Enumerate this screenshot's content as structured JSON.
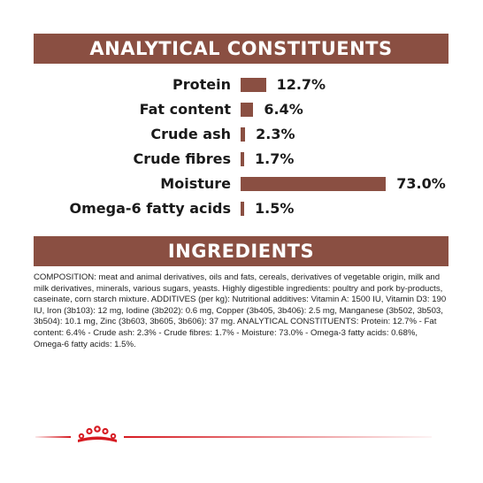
{
  "analytical_title": "ANALYTICAL CONSTITUENTS",
  "ingredients_title": "INGREDIENTS",
  "constituents": [
    {
      "label": "Protein",
      "value_text": "12.7%",
      "value": 12.7
    },
    {
      "label": "Fat content",
      "value_text": "6.4%",
      "value": 6.4
    },
    {
      "label": "Crude ash",
      "value_text": "2.3%",
      "value": 2.3
    },
    {
      "label": "Crude fibres",
      "value_text": "1.7%",
      "value": 1.7
    },
    {
      "label": "Moisture",
      "value_text": "73.0%",
      "value": 73.0
    },
    {
      "label": "Omega-6 fatty acids",
      "value_text": "1.5%",
      "value": 1.5
    }
  ],
  "ingredients_text": "COMPOSITION: meat and animal derivatives, oils and fats, cereals, derivatives of vegetable origin, milk and milk derivatives, minerals, various sugars, yeasts. Highly digestible ingredients: poultry and pork by-products, caseinate, corn starch mixture. ADDITIVES (per kg): Nutritional additives: Vitamin A: 1500 IU, Vitamin D3: 190 IU, Iron (3b103): 12 mg, Iodine (3b202): 0.6 mg, Copper (3b405, 3b406): 2.5 mg, Manganese (3b502, 3b503, 3b504): 10.1 mg, Zinc (3b603, 3b605, 3b606): 37 mg. ANALYTICAL CONSTITUENTS: Protein: 12.7% - Fat content: 6.4% - Crude ash: 2.3% - Crude fibres: 1.7% - Moisture: 73.0% - Omega-3 fatty acids: 0.68%, Omega-6 fatty acids: 1.5%.",
  "colors": {
    "brand_brown": "#8a4f42",
    "brand_red": "#d61a21"
  },
  "logo_icon": "royal-canin-crown-icon"
}
